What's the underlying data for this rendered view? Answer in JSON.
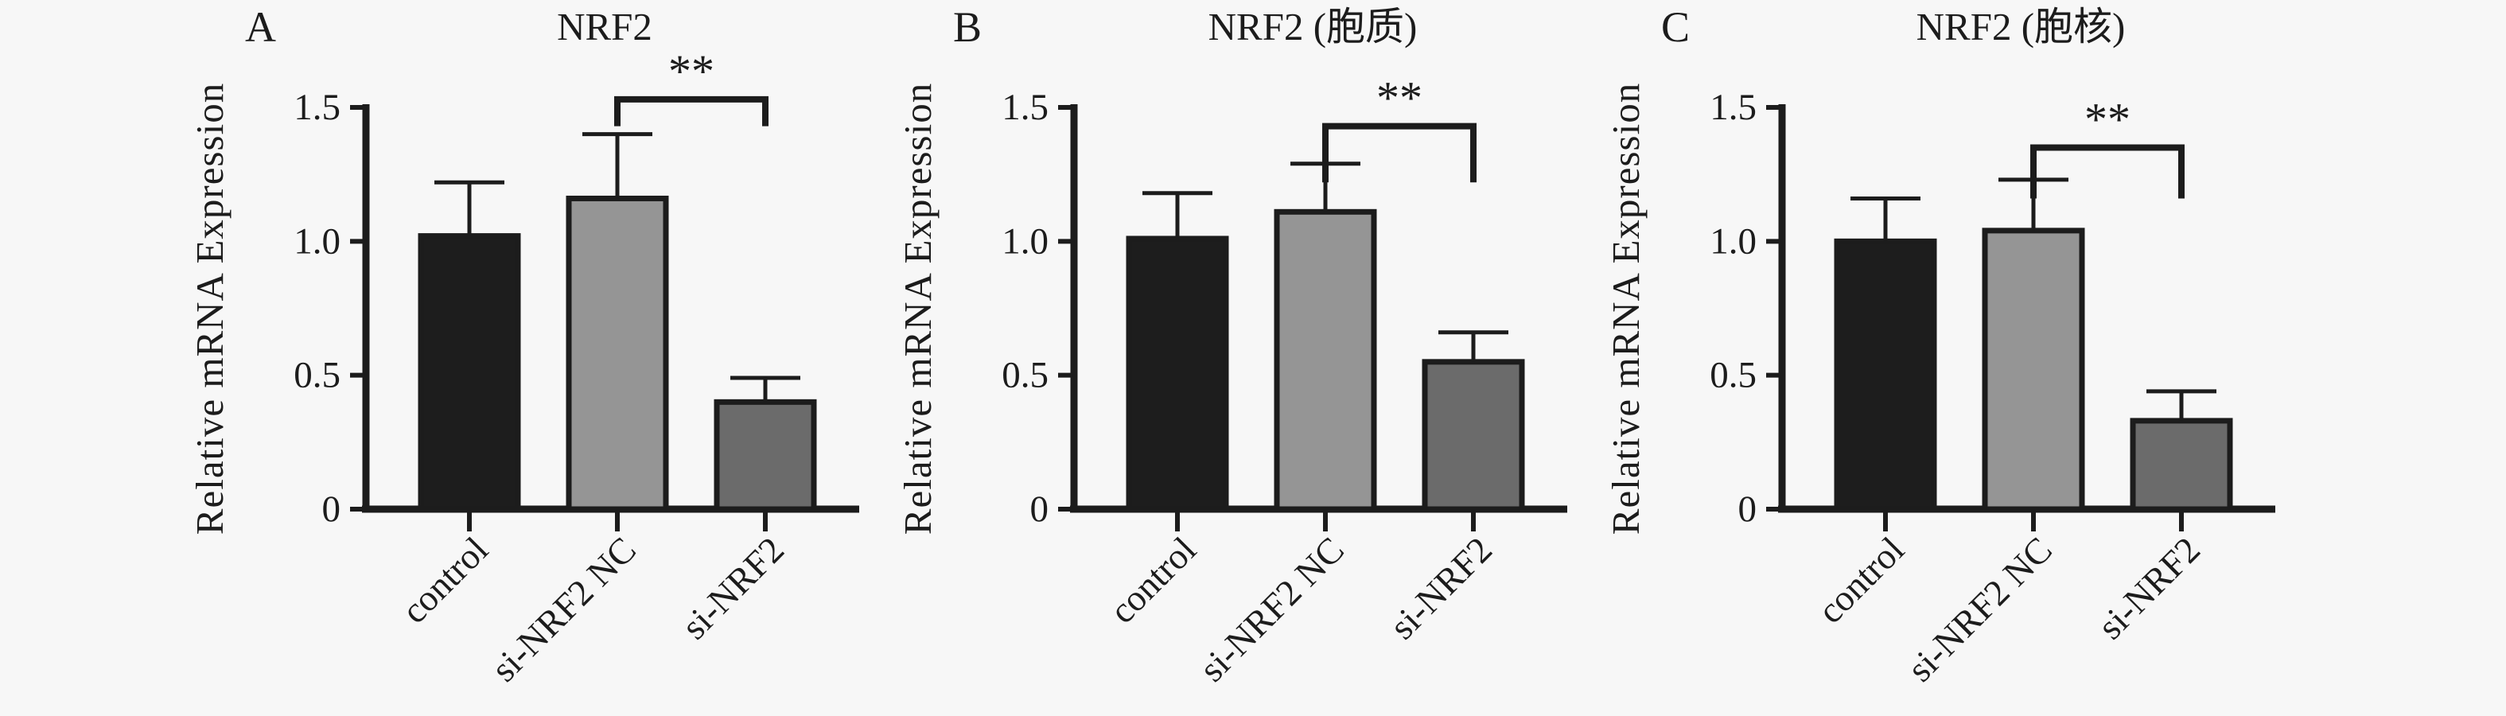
{
  "figure": {
    "background": "#f7f7f7",
    "ink_color": "#1c1c1c",
    "description_ylabel": "Relative mRNA Expression"
  },
  "chart_data": [
    {
      "type": "bar",
      "panel_label": "A",
      "title": "NRF2",
      "ylabel": "Relative mRNA Expression",
      "xlabel": "",
      "ylim": [
        0,
        1.5
      ],
      "yticks": [
        0,
        0.5,
        1.0,
        1.5
      ],
      "ytick_labels": [
        "0",
        "0.5",
        "1.0",
        "1.5"
      ],
      "categories": [
        "control",
        "si-NRF2 NC",
        "si-NRF2"
      ],
      "values": [
        1.02,
        1.16,
        0.4
      ],
      "error_top": [
        1.22,
        1.4,
        0.49
      ],
      "bar_colors": [
        "#1d1d1d",
        "#959595",
        "#6b6b6b"
      ],
      "grid": false,
      "legend": null,
      "significance": {
        "label": "**",
        "between": [
          "si-NRF2 NC",
          "si-NRF2"
        ],
        "bracket_y": 1.53,
        "tick_drop": 0.1
      }
    },
    {
      "type": "bar",
      "panel_label": "B",
      "title": "NRF2 (胞质)",
      "ylabel": "Relative mRNA Expression",
      "xlabel": "",
      "ylim": [
        0,
        1.5
      ],
      "yticks": [
        0,
        0.5,
        1.0,
        1.5
      ],
      "ytick_labels": [
        "0",
        "0.5",
        "1.0",
        "1.5"
      ],
      "categories": [
        "control",
        "si-NRF2 NC",
        "si-NRF2"
      ],
      "values": [
        1.01,
        1.11,
        0.55
      ],
      "error_top": [
        1.18,
        1.29,
        0.66
      ],
      "bar_colors": [
        "#1d1d1d",
        "#959595",
        "#6b6b6b"
      ],
      "grid": false,
      "legend": null,
      "significance": {
        "label": "**",
        "between": [
          "si-NRF2 NC",
          "si-NRF2"
        ],
        "bracket_y": 1.43,
        "tick_drop": 0.21
      }
    },
    {
      "type": "bar",
      "panel_label": "C",
      "title": "NRF2 (胞核)",
      "ylabel": "Relative mRNA Expression",
      "xlabel": "",
      "ylim": [
        0,
        1.5
      ],
      "yticks": [
        0,
        0.5,
        1.0,
        1.5
      ],
      "ytick_labels": [
        "0",
        "0.5",
        "1.0",
        "1.5"
      ],
      "categories": [
        "control",
        "si-NRF2 NC",
        "si-NRF2"
      ],
      "values": [
        1.0,
        1.04,
        0.33
      ],
      "error_top": [
        1.16,
        1.23,
        0.44
      ],
      "bar_colors": [
        "#1d1d1d",
        "#959595",
        "#6b6b6b"
      ],
      "grid": false,
      "legend": null,
      "significance": {
        "label": "**",
        "between": [
          "si-NRF2 NC",
          "si-NRF2"
        ],
        "bracket_y": 1.35,
        "tick_drop": 0.19
      }
    }
  ]
}
